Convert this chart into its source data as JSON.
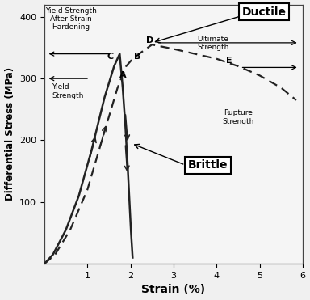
{
  "xlabel": "Strain (%)",
  "ylabel": "Differential Stress (MPa)",
  "xlim": [
    0,
    6
  ],
  "ylim": [
    0,
    420
  ],
  "xticks": [
    1,
    2,
    3,
    4,
    5,
    6
  ],
  "yticks": [
    100,
    200,
    300,
    400
  ],
  "bg_color": "#f0f0f0",
  "plot_bg_color": "#f5f5f5",
  "curve_color": "#222222",
  "brittle_label": "Brittle",
  "ductile_label": "Ductile",
  "brittle_x_up": [
    0.0,
    0.2,
    0.5,
    0.8,
    1.1,
    1.4,
    1.62,
    1.75
  ],
  "brittle_y_up": [
    0,
    15,
    55,
    110,
    185,
    270,
    320,
    340
  ],
  "brittle_x_down": [
    1.75,
    1.82,
    1.88,
    1.93,
    1.97,
    2.01,
    2.05
  ],
  "brittle_y_down": [
    340,
    285,
    225,
    165,
    110,
    55,
    10
  ],
  "ductile_x": [
    0.0,
    0.25,
    0.6,
    1.0,
    1.4,
    1.7,
    1.9,
    2.05,
    2.2,
    2.5,
    3.0,
    3.5,
    4.0,
    4.5,
    5.0,
    5.5,
    5.85
  ],
  "ductile_y": [
    0,
    15,
    55,
    120,
    215,
    285,
    320,
    332,
    340,
    355,
    348,
    340,
    332,
    320,
    305,
    285,
    265
  ],
  "point_A": [
    1.82,
    302
  ],
  "point_B": [
    2.08,
    332
  ],
  "point_C": [
    1.6,
    332
  ],
  "point_D": [
    2.45,
    358
  ],
  "point_E": [
    4.3,
    325
  ],
  "yield_strength_y": 300,
  "yield_after_y": 340,
  "ultimate_y": 358,
  "rupture_x": 4.5,
  "rupture_y": 250
}
